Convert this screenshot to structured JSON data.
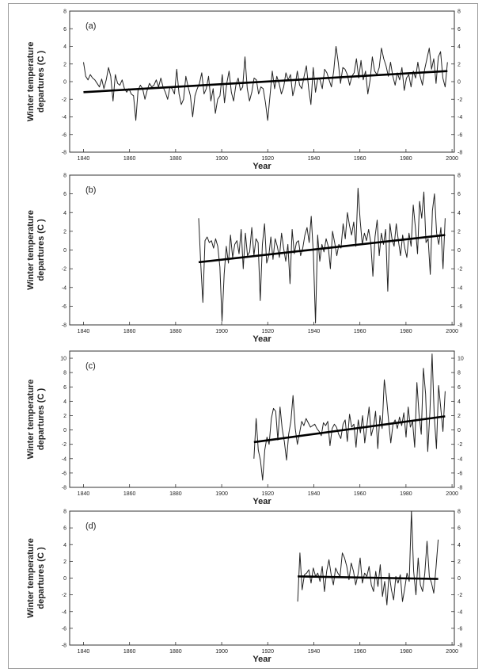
{
  "chart_data": [
    {
      "type": "line",
      "panel_label": "(a)",
      "ylabel": [
        "Winter temperature",
        "departures (C )"
      ],
      "xlabel": "Year",
      "xlim": [
        1834,
        2001
      ],
      "ylim": [
        -8,
        8
      ],
      "xticks": [
        1840,
        1860,
        1880,
        1900,
        1920,
        1940,
        1960,
        1980,
        2000
      ],
      "yticks": [
        -8,
        -6,
        -4,
        -2,
        0,
        2,
        4,
        6,
        8
      ],
      "series": [
        {
          "x_start": 1840,
          "x_end": 1998,
          "values": [
            2.2,
            0.6,
            0.2,
            0.8,
            0.4,
            0.2,
            -0.2,
            -0.6,
            0.3,
            -0.8,
            0.2,
            1.6,
            0.6,
            -2.2,
            0.8,
            -0.2,
            -0.4,
            0.2,
            -0.8,
            -1.2,
            -0.8,
            -1.4,
            -1.6,
            -4.4,
            -1.0,
            -0.4,
            -0.8,
            -2.0,
            -1.0,
            -0.2,
            -0.6,
            -0.4,
            0.2,
            -0.6,
            0.4,
            -0.6,
            -1.2,
            -2.0,
            -0.6,
            -0.8,
            -1.4,
            1.4,
            -1.4,
            -2.6,
            -2.0,
            0.6,
            -0.6,
            -1.6,
            -4.0,
            -1.6,
            -0.8,
            -0.2,
            1.0,
            -1.4,
            -0.8,
            0.6,
            -2.2,
            -0.8,
            -3.6,
            -2.0,
            -1.6,
            0.8,
            -2.4,
            -0.2,
            1.2,
            -1.2,
            -2.2,
            -0.4,
            0.4,
            -1.0,
            -0.6,
            2.8,
            -0.8,
            -2.2,
            -1.2,
            0.4,
            0.2,
            -1.4,
            -0.6,
            -0.8,
            -2.4,
            -4.4,
            -1.6,
            1.2,
            -0.8,
            0.6,
            -0.2,
            -1.4,
            -0.6,
            1.0,
            0.2,
            0.8,
            -1.6,
            -0.6,
            1.2,
            -0.4,
            -0.8,
            0.6,
            1.8,
            -0.8,
            -2.6,
            1.6,
            -1.2,
            0.4,
            0.2,
            -0.8,
            1.4,
            1.0,
            0.2,
            -0.6,
            1.2,
            4.0,
            2.2,
            -0.2,
            1.6,
            1.4,
            0.8,
            -0.4,
            0.6,
            1.0,
            2.6,
            0.4,
            2.4,
            0.2,
            1.2,
            -1.4,
            0.2,
            2.8,
            1.2,
            0.8,
            1.6,
            3.8,
            2.6,
            1.8,
            0.6,
            2.2,
            0.6,
            -0.4,
            1.0,
            0.2,
            1.6,
            -1.0,
            0.4,
            0.8,
            -0.6,
            1.2,
            0.4,
            2.2,
            0.6,
            -0.4,
            1.4,
            2.6,
            3.8,
            1.4,
            2.6,
            -0.2,
            2.8,
            3.4,
            0.4,
            -0.6,
            2.2
          ],
          "trend": [
            [
              1840,
              -1.2
            ],
            [
              1998,
              1.2
            ]
          ]
        }
      ]
    },
    {
      "type": "line",
      "panel_label": "(b)",
      "ylabel": [
        "Winter temperature",
        "departures (C )"
      ],
      "xlabel": "Year",
      "xlim": [
        1834,
        2001
      ],
      "ylim": [
        -8,
        8
      ],
      "xticks": [
        1840,
        1860,
        1880,
        1900,
        1920,
        1940,
        1960,
        1980,
        2000
      ],
      "yticks": [
        -8,
        -6,
        -4,
        -2,
        0,
        2,
        4,
        6,
        8
      ],
      "series": [
        {
          "x_start": 1890,
          "x_end": 1997,
          "values": [
            3.4,
            -1.6,
            -5.6,
            1.0,
            1.4,
            0.8,
            1.0,
            0.2,
            1.2,
            0.4,
            -1.8,
            -7.6,
            -2.6,
            0.4,
            -1.4,
            1.6,
            -0.8,
            0.6,
            1.0,
            -0.4,
            2.2,
            -2.0,
            1.8,
            -0.6,
            -0.2,
            2.4,
            -0.6,
            1.2,
            0.8,
            -5.4,
            0.6,
            2.8,
            -1.4,
            -0.6,
            1.4,
            -1.0,
            1.2,
            0.4,
            -0.8,
            1.8,
            0.2,
            -1.2,
            0.6,
            -3.6,
            2.2,
            -0.4,
            0.8,
            1.0,
            -0.6,
            0.2,
            1.6,
            2.4,
            0.8,
            3.6,
            -0.4,
            -7.8,
            1.6,
            -1.2,
            0.6,
            -0.2,
            1.2,
            0.4,
            -2.0,
            2.0,
            0.8,
            -0.6,
            0.6,
            0.2,
            2.8,
            1.2,
            4.0,
            2.6,
            1.6,
            3.0,
            0.4,
            6.6,
            3.2,
            0.6,
            1.8,
            1.0,
            2.2,
            0.8,
            -2.8,
            1.4,
            3.2,
            -0.6,
            1.8,
            0.6,
            2.2,
            -4.4,
            2.8,
            1.2,
            0.4,
            2.8,
            1.0,
            -0.6,
            1.6,
            0.2,
            -0.8,
            1.8,
            0.4,
            4.8,
            2.4,
            -0.4,
            5.2,
            3.4,
            6.2,
            0.8,
            1.2,
            -2.6,
            4.2,
            6.0,
            1.8,
            0.6,
            2.4,
            -2.0,
            3.4
          ],
          "trend": [
            [
              1890,
              -1.3
            ],
            [
              1997,
              1.6
            ]
          ]
        }
      ]
    },
    {
      "type": "line",
      "panel_label": "(c)",
      "ylabel": [
        "Winter temperature",
        "departures (C )"
      ],
      "xlabel": "Year",
      "xlim": [
        1834,
        2001
      ],
      "ylim": [
        -8,
        11
      ],
      "xticks": [
        1840,
        1860,
        1880,
        1900,
        1920,
        1940,
        1960,
        1980,
        2000
      ],
      "yticks": [
        -8,
        -6,
        -4,
        -2,
        0,
        2,
        4,
        6,
        8,
        10
      ],
      "series": [
        {
          "x_start": 1914,
          "x_end": 1997,
          "values": [
            -4.0,
            1.6,
            -2.8,
            -4.2,
            -7.0,
            -2.8,
            -1.0,
            -2.0,
            1.6,
            3.0,
            2.6,
            -1.4,
            3.2,
            0.2,
            -1.6,
            -4.2,
            -0.6,
            1.2,
            4.8,
            0.2,
            -2.0,
            -0.4,
            1.2,
            0.6,
            1.6,
            1.0,
            0.4,
            0.6,
            0.8,
            0.2,
            -0.2,
            -0.8,
            1.0,
            0.6,
            1.2,
            -2.2,
            0.2,
            0.8,
            0.4,
            -0.6,
            -1.2,
            0.8,
            1.4,
            -1.6,
            2.2,
            0.4,
            0.8,
            -2.4,
            1.4,
            -0.4,
            2.0,
            -1.8,
            0.6,
            3.2,
            -0.8,
            0.4,
            2.6,
            -2.6,
            2.0,
            0.2,
            7.0,
            4.6,
            1.2,
            -1.8,
            0.8,
            1.4,
            0.2,
            1.8,
            0.6,
            2.4,
            -1.0,
            3.2,
            0.4,
            1.2,
            -2.4,
            6.6,
            2.2,
            -0.6,
            8.6,
            5.0,
            -3.0,
            2.4,
            10.6,
            2.0,
            -2.6,
            6.2,
            3.0,
            -0.2,
            5.4
          ],
          "trend": [
            [
              1914,
              -1.7
            ],
            [
              1997,
              1.9
            ]
          ]
        }
      ]
    },
    {
      "type": "line",
      "panel_label": "(d)",
      "ylabel": [
        "Winter temperature",
        "departures (C )"
      ],
      "xlabel": "Year",
      "xlim": [
        1834,
        2001
      ],
      "ylim": [
        -8,
        8
      ],
      "xticks": [
        1840,
        1860,
        1880,
        1900,
        1920,
        1940,
        1960,
        1980,
        2000
      ],
      "yticks": [
        -8,
        -6,
        -4,
        -2,
        0,
        2,
        4,
        6,
        8
      ],
      "series": [
        {
          "x_start": 1933,
          "x_end": 1994,
          "values": [
            -2.8,
            3.0,
            -1.4,
            0.4,
            0.6,
            1.0,
            -0.6,
            1.2,
            0.2,
            0.6,
            -0.4,
            1.4,
            -1.6,
            0.8,
            2.2,
            0.4,
            -0.8,
            1.2,
            0.6,
            0.2,
            3.0,
            2.4,
            1.4,
            -0.2,
            1.8,
            0.8,
            -0.8,
            0.4,
            2.4,
            -0.6,
            0.6,
            0.2,
            1.4,
            -0.8,
            -1.6,
            0.8,
            -1.0,
            1.6,
            -2.2,
            -0.4,
            -3.2,
            0.6,
            -1.4,
            -2.6,
            0.2,
            -0.6,
            0.4,
            -2.8,
            -1.2,
            0.6,
            -0.4,
            8.0,
            0.8,
            -2.0,
            2.4,
            -0.8,
            -1.6,
            0.6,
            4.4,
            0.2,
            -0.6,
            -1.8,
            1.2,
            4.6
          ],
          "trend": [
            [
              1933,
              0.2
            ],
            [
              1994,
              -0.1
            ]
          ]
        }
      ]
    }
  ]
}
